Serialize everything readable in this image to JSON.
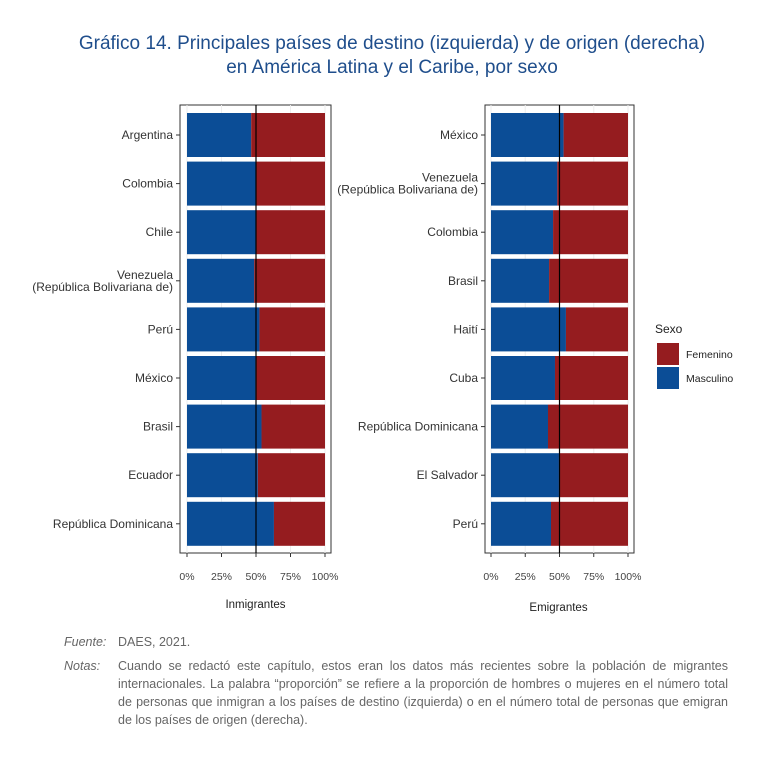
{
  "title_line1": "Gráfico 14. Principales países de destino (izquierda) y de origen (derecha)",
  "title_line2": "en América Latina y el Caribe, por sexo",
  "colors": {
    "Femenino": "#951c1f",
    "Masculino": "#0b4d96"
  },
  "chart_data": [
    {
      "type": "bar",
      "stacked": true,
      "orientation": "horizontal",
      "xlabel": "Inmigrantes",
      "categories": [
        "Argentina",
        "Colombia",
        "Chile",
        "Venezuela\n(República Bolivariana de)",
        "Perú",
        "México",
        "Brasil",
        "Ecuador",
        "República Dominicana"
      ],
      "xlim": [
        0,
        100
      ],
      "xticks": [
        "0%",
        "25%",
        "50%",
        "75%",
        "100%"
      ],
      "reference_line": 50,
      "series": [
        {
          "name": "Masculino",
          "values": [
            46.5,
            50,
            50,
            48.7,
            52.5,
            49.6,
            54,
            51.3,
            63
          ]
        },
        {
          "name": "Femenino",
          "values": [
            53.5,
            50,
            50,
            51.3,
            47.5,
            50.4,
            46,
            48.7,
            37
          ]
        }
      ]
    },
    {
      "type": "bar",
      "stacked": true,
      "orientation": "horizontal",
      "xlabel": "Emigrantes",
      "categories": [
        "México",
        "Venezuela\n(República Bolivariana de)",
        "Colombia",
        "Brasil",
        "Haití",
        "Cuba",
        "República Dominicana",
        "El Salvador",
        "Perú"
      ],
      "xlim": [
        0,
        100
      ],
      "xticks": [
        "0%",
        "25%",
        "50%",
        "75%",
        "100%"
      ],
      "reference_line": 50,
      "series": [
        {
          "name": "Masculino",
          "values": [
            53,
            48.4,
            45.3,
            42.4,
            54.7,
            46.7,
            41.6,
            49.6,
            43.8
          ]
        },
        {
          "name": "Femenino",
          "values": [
            47,
            51.6,
            54.7,
            57.6,
            45.3,
            53.3,
            58.4,
            50.4,
            56.2
          ]
        }
      ]
    }
  ],
  "legend": {
    "title": "Sexo",
    "items": [
      "Femenino",
      "Masculino"
    ]
  },
  "footer": {
    "fuente_label": "Fuente:",
    "fuente": "DAES, 2021.",
    "notas_label": "Notas:",
    "notas": "Cuando se redactó este capítulo, estos eran los datos más recientes sobre la población de migrantes internacionales. La palabra “proporción” se refiere a la proporción de hombres o mujeres en el número total de personas que inmigran a los países de destino (izquierda) o en el número total de personas que emigran de los países de origen (derecha)."
  }
}
